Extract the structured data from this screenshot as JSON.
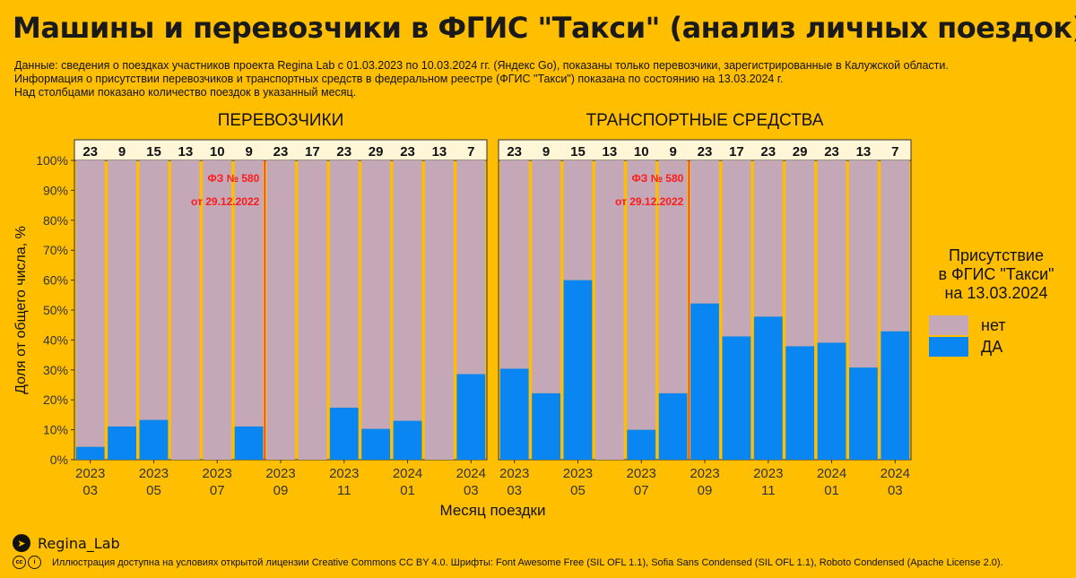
{
  "header": {
    "title": "Машины и перевозчики в ФГИС \"Такси\" (анализ личных поездок)",
    "subtitle_lines": [
      "Данные: сведения о поездках участников проекта Regina Lab с 01.03.2023 по 10.03.2024 гг. (Яндекс Go), показаны только перевозчики, зарегистрированные в Калужской области.",
      "Информация о присутствии перевозчиков и транспортных средств в федеральном реестре (ФГИС \"Такси\") показана по состоянию на 13.03.2024 г.",
      "Над столбцами показано количество поездок в указанный месяц."
    ]
  },
  "legend": {
    "title_lines": [
      "Присутствие",
      "в ФГИС \"Такси\"",
      "на 13.03.2024"
    ],
    "items": [
      {
        "label": "нет",
        "color": "#C4A8B8"
      },
      {
        "label": "ДА",
        "color": "#0A86F2"
      }
    ]
  },
  "footer": {
    "brand": "Regina_Lab",
    "license": "Иллюстрация доступна на условиях открытой лицензии Creative Commons CC BY 4.0. Шрифты: Font Awesome Free (SIL OFL 1.1), Sofia Sans Condensed (SIL OFL 1.1), Roboto Condensed (Apache License 2.0)."
  },
  "colors": {
    "no": "#C4A8B8",
    "yes": "#0A86F2",
    "background": "#FFBF00",
    "panel_bg": "#FFBF00",
    "strip_bg": "#FFF6D8",
    "annotation": "#FF1A1A"
  },
  "chart_data": {
    "type": "bar",
    "stacked": true,
    "xlabel": "Месяц поездки",
    "ylabel": "Доля от общего числа, %",
    "ylim": [
      0,
      100
    ],
    "y_ticks": [
      "0%",
      "10%",
      "20%",
      "30%",
      "40%",
      "50%",
      "60%",
      "70%",
      "80%",
      "90%",
      "100%"
    ],
    "categories": [
      "2023-03",
      "2023-04",
      "2023-05",
      "2023-06",
      "2023-07",
      "2023-08",
      "2023-09",
      "2023-10",
      "2023-11",
      "2023-12",
      "2024-01",
      "2024-02",
      "2024-03"
    ],
    "x_tick_labels": [
      {
        "year": "2023",
        "month": "03"
      },
      {
        "year": "2023",
        "month": "05"
      },
      {
        "year": "2023",
        "month": "07"
      },
      {
        "year": "2023",
        "month": "09"
      },
      {
        "year": "2023",
        "month": "11"
      },
      {
        "year": "2024",
        "month": "01"
      },
      {
        "year": "2024",
        "month": "03"
      }
    ],
    "trip_counts": [
      23,
      9,
      15,
      13,
      10,
      9,
      23,
      17,
      23,
      29,
      23,
      13,
      7
    ],
    "annotation": {
      "lines": [
        "ФЗ № 580",
        "от 29.12.2022"
      ]
    },
    "panels": [
      {
        "title": "ПЕРЕВОЗЧИКИ",
        "series": [
          {
            "name": "ДА",
            "values": [
              4.3,
              11.1,
              13.3,
              0,
              0,
              11.1,
              0,
              0,
              17.4,
              10.3,
              13.0,
              0,
              28.6
            ]
          },
          {
            "name": "нет",
            "values": [
              95.7,
              88.9,
              86.7,
              100,
              100,
              88.9,
              100,
              100,
              82.6,
              89.7,
              87.0,
              100,
              71.4
            ]
          }
        ]
      },
      {
        "title": "ТРАНСПОРТНЫЕ СРЕДСТВА",
        "series": [
          {
            "name": "ДА",
            "values": [
              30.4,
              22.2,
              60.0,
              0,
              10.0,
              22.2,
              52.2,
              41.2,
              47.8,
              37.9,
              39.1,
              30.8,
              42.9
            ]
          },
          {
            "name": "нет",
            "values": [
              69.6,
              77.8,
              40.0,
              100,
              90.0,
              77.8,
              47.8,
              58.8,
              52.2,
              62.1,
              60.9,
              69.2,
              57.1
            ]
          }
        ]
      }
    ]
  }
}
